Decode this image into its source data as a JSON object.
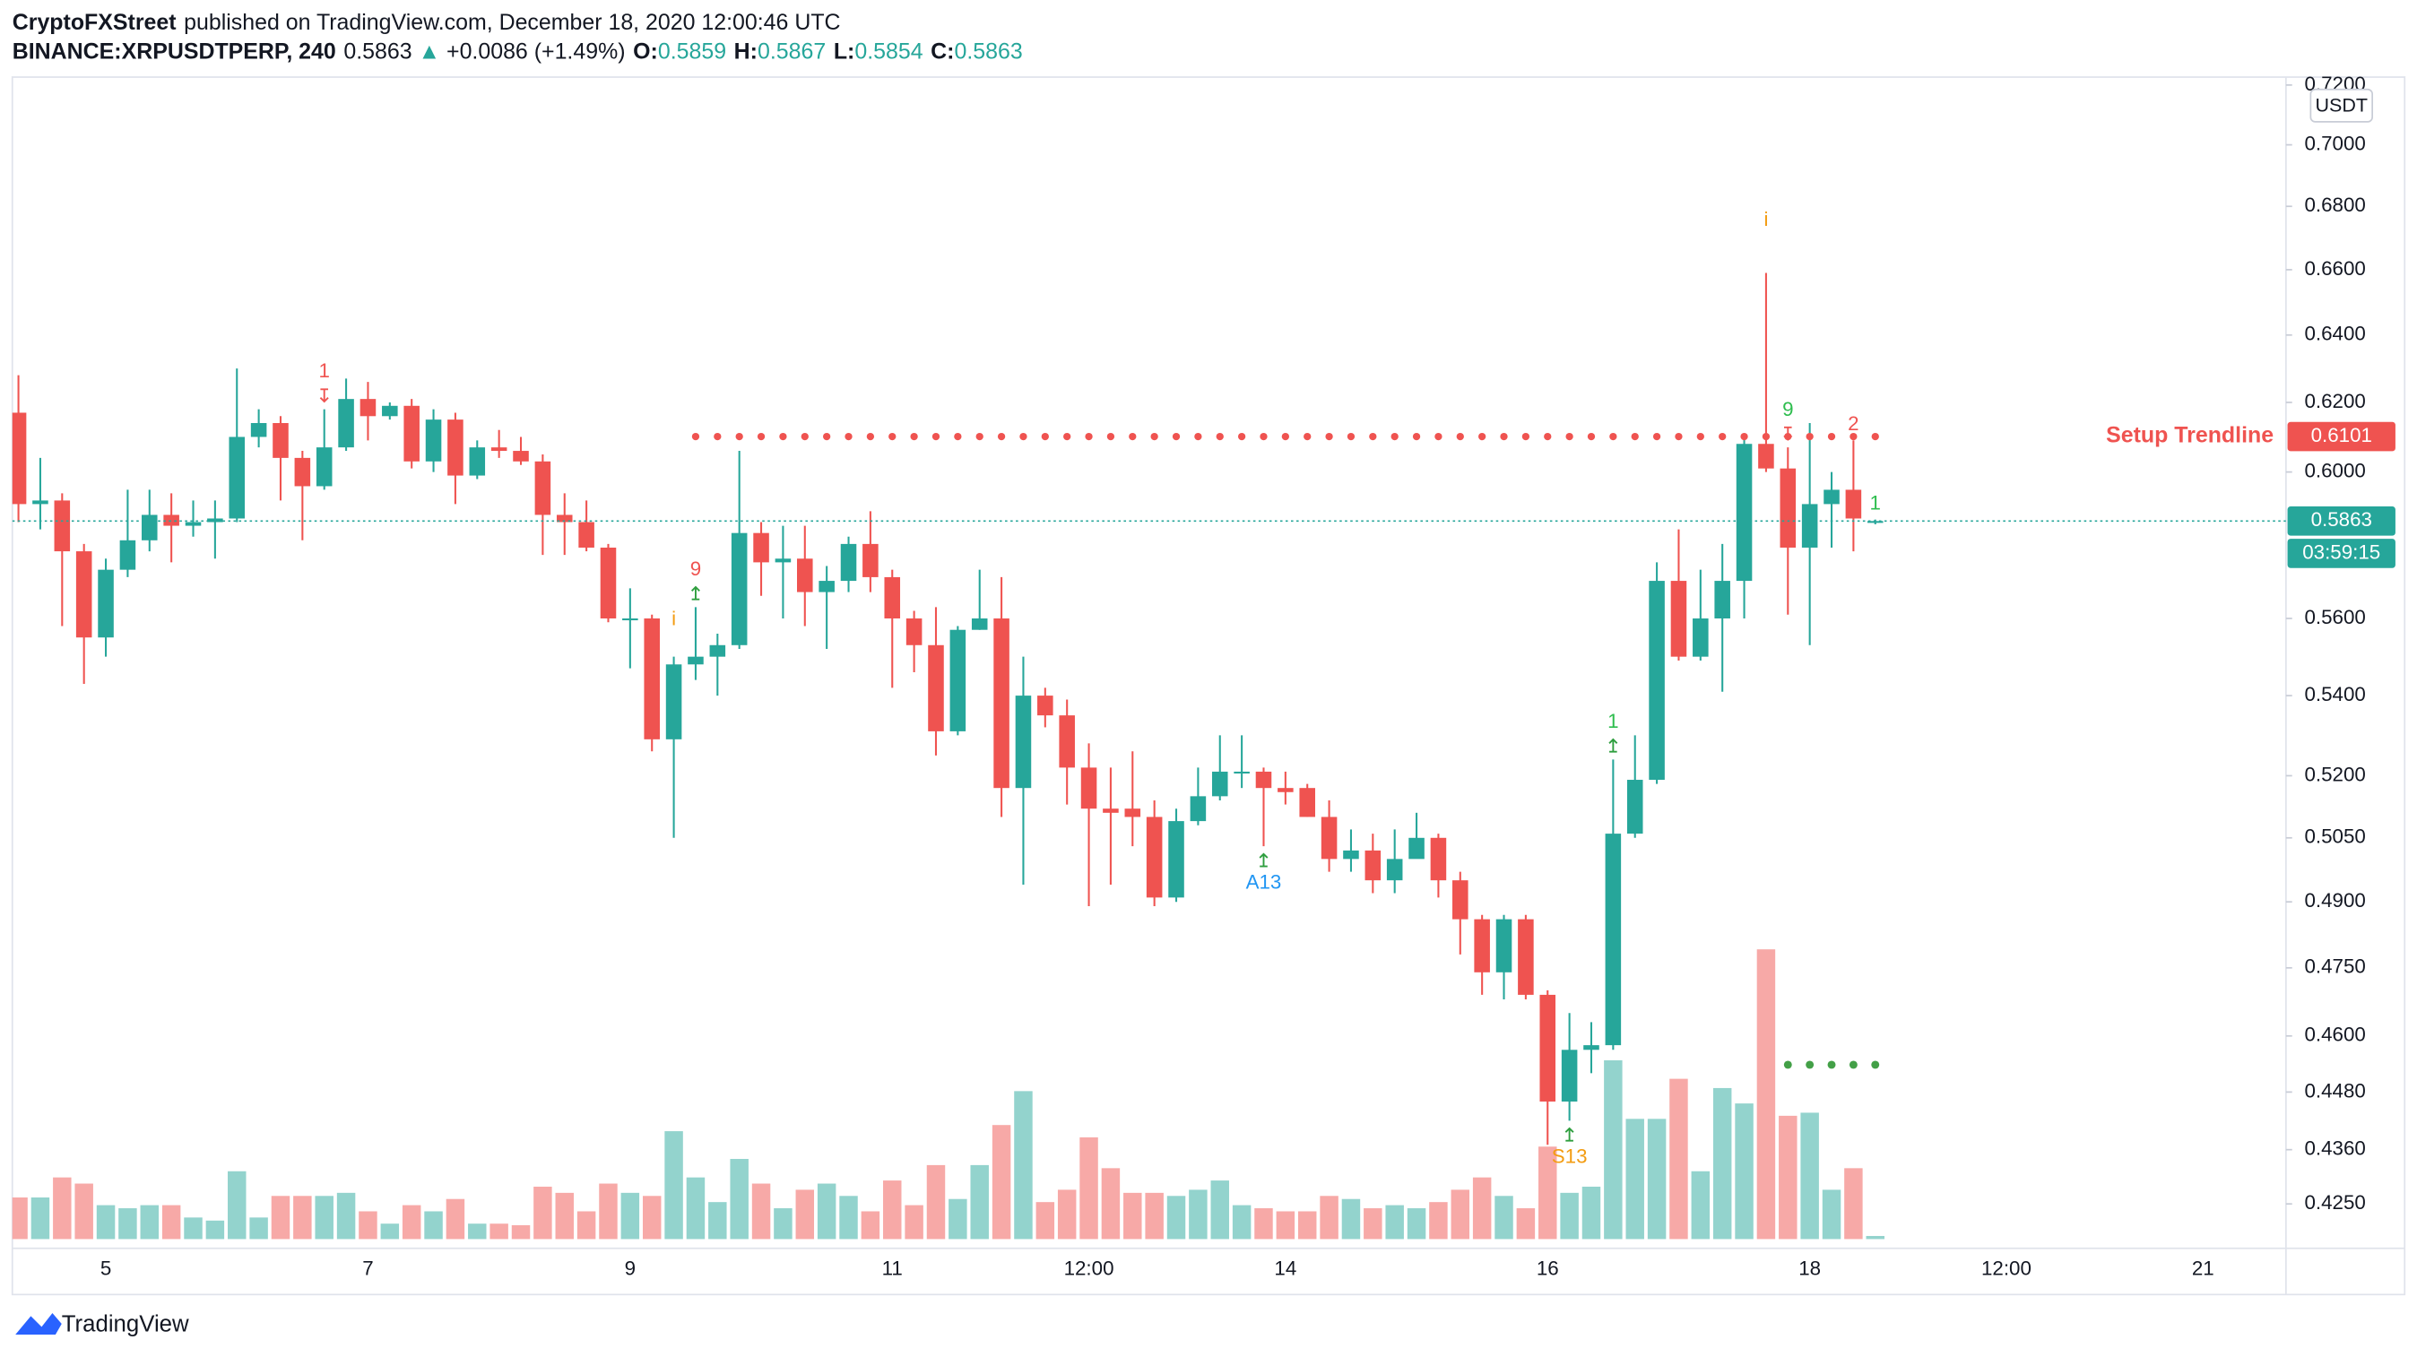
{
  "chart_data": {
    "type": "candlestick",
    "header": {
      "author": "CryptoFXStreet",
      "published": "published on TradingView.com, December 18, 2020 12:00:46 UTC"
    },
    "legend": {
      "symbol": "BINANCE:XRPUSDTPERP, 240",
      "last": 0.5863,
      "change_icon": "▲",
      "change": "+0.0086 (+1.49%)",
      "fields": [
        {
          "label": "O:",
          "value": 0.5859
        },
        {
          "label": "H:",
          "value": 0.5867
        },
        {
          "label": "L:",
          "value": 0.5854
        },
        {
          "label": "C:",
          "value": 0.5863
        }
      ]
    },
    "currency": "USDT",
    "brand": "TradingView",
    "log_scale": true,
    "grid": false,
    "up_color": "#26a69a",
    "down_color": "#ef5350",
    "volume_colors": {
      "up": "#93d3cd",
      "down": "#f7a9a7"
    },
    "x": [
      0,
      1,
      2,
      3,
      4,
      5,
      6,
      7,
      8,
      9,
      10,
      11,
      12,
      13,
      14,
      15,
      16,
      17,
      18,
      19,
      20,
      21,
      22,
      23,
      24,
      25,
      26,
      27,
      28,
      29,
      30,
      31,
      32,
      33,
      34,
      35,
      36,
      37,
      38,
      39,
      40,
      41,
      42,
      43,
      44,
      45,
      46,
      47,
      48,
      49,
      50,
      51,
      52,
      53,
      54,
      55,
      56,
      57,
      58,
      59,
      60,
      61,
      62,
      63,
      64,
      65,
      66,
      67,
      68,
      69,
      70,
      71,
      72,
      73,
      74,
      75,
      76,
      77,
      78,
      79,
      80,
      81,
      82,
      83,
      84,
      85
    ],
    "open": [
      0.617,
      0.591,
      0.592,
      0.578,
      0.555,
      0.573,
      0.581,
      0.588,
      0.585,
      0.586,
      0.587,
      0.61,
      0.614,
      0.604,
      0.596,
      0.607,
      0.621,
      0.616,
      0.619,
      0.603,
      0.615,
      0.599,
      0.607,
      0.606,
      0.603,
      0.588,
      0.586,
      0.579,
      0.56,
      0.56,
      0.529,
      0.548,
      0.55,
      0.553,
      0.583,
      0.575,
      0.576,
      0.567,
      0.57,
      0.58,
      0.571,
      0.56,
      0.553,
      0.531,
      0.557,
      0.56,
      0.517,
      0.54,
      0.535,
      0.522,
      0.512,
      0.512,
      0.51,
      0.491,
      0.509,
      0.515,
      0.521,
      0.521,
      0.517,
      0.517,
      0.51,
      0.5,
      0.502,
      0.495,
      0.5,
      0.505,
      0.495,
      0.486,
      0.474,
      0.486,
      0.469,
      0.446,
      0.457,
      0.458,
      0.506,
      0.519,
      0.57,
      0.55,
      0.56,
      0.57,
      0.608,
      0.601,
      0.579,
      0.591,
      0.595,
      0.5859
    ],
    "high": [
      0.628,
      0.604,
      0.594,
      0.58,
      0.576,
      0.595,
      0.595,
      0.594,
      0.592,
      0.592,
      0.63,
      0.618,
      0.616,
      0.606,
      0.618,
      0.627,
      0.626,
      0.62,
      0.621,
      0.618,
      0.617,
      0.609,
      0.612,
      0.61,
      0.605,
      0.594,
      0.592,
      0.58,
      0.568,
      0.561,
      0.55,
      0.563,
      0.556,
      0.606,
      0.586,
      0.585,
      0.585,
      0.574,
      0.582,
      0.589,
      0.573,
      0.562,
      0.563,
      0.558,
      0.573,
      0.571,
      0.55,
      0.542,
      0.539,
      0.528,
      0.522,
      0.526,
      0.514,
      0.512,
      0.522,
      0.53,
      0.53,
      0.522,
      0.521,
      0.518,
      0.514,
      0.507,
      0.506,
      0.507,
      0.511,
      0.506,
      0.497,
      0.487,
      0.487,
      0.487,
      0.47,
      0.465,
      0.463,
      0.524,
      0.53,
      0.575,
      0.584,
      0.573,
      0.58,
      0.61,
      0.659,
      0.607,
      0.614,
      0.6,
      0.609,
      0.5867
    ],
    "low": [
      0.586,
      0.584,
      0.558,
      0.543,
      0.55,
      0.571,
      0.578,
      0.575,
      0.582,
      0.576,
      0.586,
      0.607,
      0.592,
      0.581,
      0.595,
      0.606,
      0.609,
      0.615,
      0.601,
      0.6,
      0.591,
      0.598,
      0.604,
      0.602,
      0.577,
      0.577,
      0.578,
      0.559,
      0.547,
      0.526,
      0.505,
      0.544,
      0.54,
      0.552,
      0.566,
      0.56,
      0.558,
      0.552,
      0.567,
      0.567,
      0.542,
      0.546,
      0.525,
      0.53,
      0.557,
      0.51,
      0.494,
      0.532,
      0.513,
      0.489,
      0.494,
      0.503,
      0.489,
      0.49,
      0.508,
      0.514,
      0.517,
      0.503,
      0.513,
      0.51,
      0.497,
      0.497,
      0.492,
      0.492,
      0.501,
      0.491,
      0.478,
      0.469,
      0.468,
      0.468,
      0.437,
      0.442,
      0.452,
      0.457,
      0.505,
      0.518,
      0.549,
      0.549,
      0.541,
      0.56,
      0.6,
      0.561,
      0.553,
      0.579,
      0.578,
      0.5854
    ],
    "close": [
      0.591,
      0.592,
      0.578,
      0.555,
      0.573,
      0.581,
      0.588,
      0.585,
      0.586,
      0.587,
      0.61,
      0.614,
      0.604,
      0.596,
      0.607,
      0.621,
      0.616,
      0.619,
      0.603,
      0.615,
      0.599,
      0.607,
      0.606,
      0.603,
      0.588,
      0.586,
      0.579,
      0.56,
      0.56,
      0.529,
      0.548,
      0.55,
      0.553,
      0.583,
      0.575,
      0.576,
      0.567,
      0.57,
      0.58,
      0.571,
      0.56,
      0.553,
      0.531,
      0.557,
      0.56,
      0.517,
      0.54,
      0.535,
      0.522,
      0.512,
      0.511,
      0.51,
      0.491,
      0.509,
      0.515,
      0.521,
      0.521,
      0.517,
      0.516,
      0.51,
      0.5,
      0.502,
      0.495,
      0.5,
      0.505,
      0.495,
      0.486,
      0.474,
      0.486,
      0.469,
      0.446,
      0.457,
      0.458,
      0.506,
      0.519,
      0.57,
      0.55,
      0.56,
      0.57,
      0.608,
      0.601,
      0.579,
      0.591,
      0.595,
      0.587,
      0.5863
    ],
    "volume": [
      27,
      27,
      40,
      36,
      22,
      20,
      22,
      22,
      14,
      12,
      44,
      14,
      28,
      28,
      28,
      30,
      18,
      10,
      22,
      18,
      26,
      10,
      10,
      9,
      34,
      30,
      18,
      36,
      30,
      28,
      70,
      40,
      24,
      52,
      36,
      20,
      32,
      36,
      28,
      18,
      38,
      22,
      48,
      26,
      48,
      74,
      96,
      24,
      32,
      66,
      46,
      30,
      30,
      28,
      32,
      38,
      22,
      20,
      18,
      18,
      28,
      26,
      20,
      22,
      20,
      24,
      32,
      40,
      28,
      20,
      60,
      30,
      34,
      116,
      78,
      78,
      104,
      44,
      98,
      88,
      188,
      80,
      82,
      32,
      46,
      2
    ],
    "volume_lim": [
      0,
      760
    ],
    "xlim": [
      -0.28,
      103.8
    ],
    "ylim": [
      0.4162,
      0.7227
    ],
    "xticks": [
      {
        "value": 4,
        "label": "5"
      },
      {
        "value": 16,
        "label": "7"
      },
      {
        "value": 28,
        "label": "9"
      },
      {
        "value": 40,
        "label": "11"
      },
      {
        "value": 49,
        "label": "12:00"
      },
      {
        "value": 58,
        "label": "14"
      },
      {
        "value": 70,
        "label": "16"
      },
      {
        "value": 82,
        "label": "18"
      },
      {
        "value": 91,
        "label": "12:00"
      },
      {
        "value": 100,
        "label": "21"
      }
    ],
    "yticks": [
      {
        "value": 0.72,
        "label": "0.7200"
      },
      {
        "value": 0.7,
        "label": "0.7000"
      },
      {
        "value": 0.68,
        "label": "0.6800"
      },
      {
        "value": 0.66,
        "label": "0.6600"
      },
      {
        "value": 0.64,
        "label": "0.6400"
      },
      {
        "value": 0.62,
        "label": "0.6200"
      },
      {
        "value": 0.6,
        "label": "0.6000"
      },
      {
        "value": 0.56,
        "label": "0.5600"
      },
      {
        "value": 0.54,
        "label": "0.5400"
      },
      {
        "value": 0.52,
        "label": "0.5200"
      },
      {
        "value": 0.505,
        "label": "0.5050"
      },
      {
        "value": 0.49,
        "label": "0.4900"
      },
      {
        "value": 0.475,
        "label": "0.4750"
      },
      {
        "value": 0.46,
        "label": "0.4600"
      },
      {
        "value": 0.448,
        "label": "0.4480"
      },
      {
        "value": 0.436,
        "label": "0.4360"
      },
      {
        "value": 0.425,
        "label": "0.4250"
      }
    ],
    "current_price": {
      "value": 0.5863,
      "countdown": "03:59:15",
      "color": "#26a69a"
    },
    "trendline": {
      "label": "Setup Trendline",
      "value": 0.6101,
      "color": "#ef5350",
      "x": [
        31,
        85
      ]
    },
    "support": {
      "value": 0.4538,
      "color": "#43a047",
      "x": [
        81,
        85
      ]
    },
    "markers": [
      {
        "text": "1",
        "x": 14,
        "position": "above",
        "color": "#ef5350",
        "arrow": "down",
        "arrow_color": "#ef5350"
      },
      {
        "text": "i",
        "x": 30,
        "position": "above",
        "color": "#f39c12"
      },
      {
        "text": "9",
        "x": 31,
        "position": "above",
        "color": "#ef5350",
        "arrow": "up",
        "arrow_color": "#2e9e3e"
      },
      {
        "text": "A13",
        "x": 57,
        "position": "below",
        "color": "#2196f3",
        "arrow": "up",
        "arrow_color": "#2e9e3e"
      },
      {
        "text": "S13",
        "x": 71,
        "position": "below",
        "color": "#f39c12",
        "arrow": "up",
        "arrow_color": "#2e9e3e"
      },
      {
        "text": "1",
        "x": 73,
        "position": "above",
        "color": "#2ebd4e",
        "arrow": "up",
        "arrow_color": "#2e9e3e"
      },
      {
        "text": "i",
        "x": 80,
        "position": "above",
        "color": "#f39c12"
      },
      {
        "text": "9",
        "x": 81,
        "position": "above",
        "color": "#2ebd4e",
        "arrow": "down",
        "arrow_color": "#ef5350"
      },
      {
        "text": "2",
        "x": 84,
        "position": "above",
        "color": "#ef5350"
      },
      {
        "text": "1",
        "x": 85,
        "position": "above",
        "color": "#2ebd4e"
      }
    ]
  }
}
